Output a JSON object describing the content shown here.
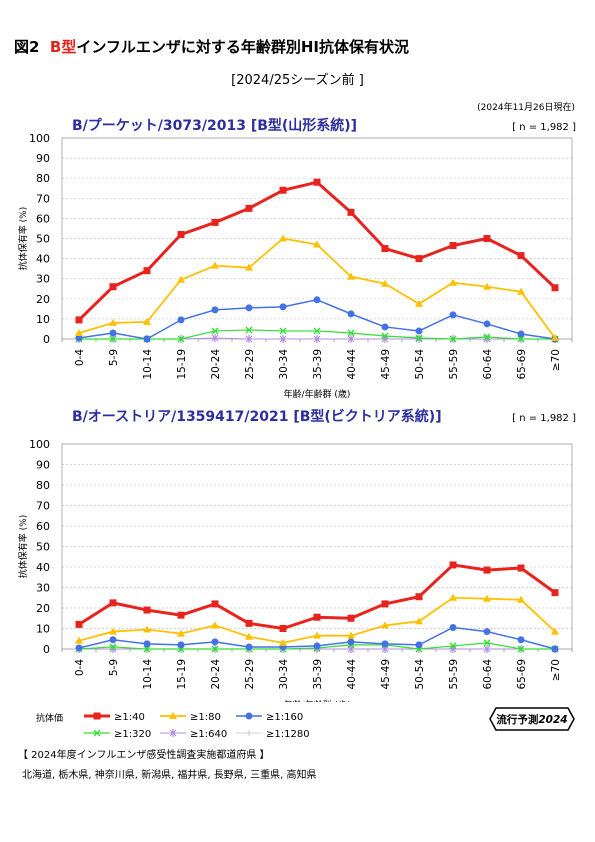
{
  "figure": {
    "title_prefix": "図2",
    "title_accent": "B型",
    "title_rest": "インフルエンザに対する年齢群別HI抗体保有状況",
    "subtitle": "[2024/25シーズン前 ]",
    "as_of": "(2024年11月26日現在)"
  },
  "colors": {
    "title_text": "#2e2e9e",
    "series": [
      "#e8231d",
      "#ffc000",
      "#4472e6",
      "#33dd33",
      "#b38be6",
      "#c8c8c8"
    ],
    "grid": "#c8c8c8"
  },
  "chart_data": [
    {
      "type": "line",
      "title": "B/プーケット/3073/2013 [B型(山形系統)]",
      "n_label": "[ n = 1,982 ]",
      "xlabel": "年齢/年齢群 (歳)",
      "ylabel": "抗体保有率 (%)",
      "ylim": [
        0,
        100
      ],
      "yticks": [
        0,
        10,
        20,
        30,
        40,
        50,
        60,
        70,
        80,
        90,
        100
      ],
      "grid": true,
      "categories": [
        "0-4",
        "5-9",
        "10-14",
        "15-19",
        "20-24",
        "25-29",
        "30-34",
        "35-39",
        "40-44",
        "45-49",
        "50-54",
        "55-59",
        "60-64",
        "65-69",
        "≥70"
      ],
      "series": [
        {
          "name": "≥1:40",
          "values": [
            9.5,
            26,
            34,
            52,
            58,
            65,
            74,
            78,
            63,
            45,
            40,
            46.5,
            50,
            41.5,
            25.5
          ]
        },
        {
          "name": "≥1:80",
          "values": [
            3,
            8,
            8.5,
            29.5,
            36.5,
            35.5,
            50,
            47,
            31,
            27.5,
            17.5,
            28,
            26,
            23.5,
            0.5
          ]
        },
        {
          "name": "≥1:160",
          "values": [
            0.5,
            3,
            0,
            9.5,
            14.5,
            15.5,
            16,
            19.5,
            12.5,
            6,
            4,
            12,
            7.5,
            2.5,
            0
          ]
        },
        {
          "name": "≥1:320",
          "values": [
            0,
            0,
            0,
            0,
            4,
            4.5,
            4,
            4,
            3,
            1.5,
            0.5,
            0,
            1,
            0,
            0
          ]
        },
        {
          "name": "≥1:640",
          "values": [
            0,
            0,
            0,
            0,
            0.5,
            0,
            0,
            0,
            0,
            0,
            0,
            0,
            0,
            0,
            0
          ]
        },
        {
          "name": "≥1:1280",
          "values": [
            0,
            0,
            0,
            0,
            0,
            0,
            0,
            0,
            0,
            0,
            0,
            0,
            0,
            0,
            0
          ]
        }
      ]
    },
    {
      "type": "line",
      "title": "B/オーストリア/1359417/2021  [B型(ビクトリア系統)]",
      "n_label": "[ n = 1,982 ]",
      "xlabel": "年齢/年齢群 (歳)",
      "ylabel": "抗体保有率 (%)",
      "ylim": [
        0,
        100
      ],
      "yticks": [
        0,
        10,
        20,
        30,
        40,
        50,
        60,
        70,
        80,
        90,
        100
      ],
      "grid": true,
      "categories": [
        "0-4",
        "5-9",
        "10-14",
        "15-19",
        "20-24",
        "25-29",
        "30-34",
        "35-39",
        "40-44",
        "45-49",
        "50-54",
        "55-59",
        "60-64",
        "65-69",
        "≥70"
      ],
      "series": [
        {
          "name": "≥1:40",
          "values": [
            12,
            22.5,
            19,
            16.5,
            22,
            12.5,
            10,
            15.5,
            15,
            22,
            25.5,
            41,
            38.5,
            39.5,
            27.5
          ]
        },
        {
          "name": "≥1:80",
          "values": [
            4,
            8.5,
            9.5,
            7.5,
            11.5,
            6,
            3,
            6.5,
            6.5,
            11.5,
            13.5,
            25,
            24.5,
            24,
            8.5
          ]
        },
        {
          "name": "≥1:160",
          "values": [
            0.5,
            4.5,
            2.5,
            2,
            3.5,
            1,
            1,
            1.5,
            3.5,
            2.5,
            2,
            10.5,
            8.5,
            4.5,
            0
          ]
        },
        {
          "name": "≥1:320",
          "values": [
            0,
            1,
            0,
            0,
            0,
            0,
            0,
            0.5,
            2,
            2,
            0,
            1.5,
            3,
            0,
            0
          ]
        },
        {
          "name": "≥1:640",
          "values": [
            0,
            0,
            0,
            0,
            0,
            0,
            0,
            0,
            0,
            0,
            0,
            0,
            0,
            0,
            0
          ]
        },
        {
          "name": "≥1:1280",
          "values": [
            0,
            0,
            0,
            0,
            0,
            0,
            0,
            0,
            0,
            0,
            0,
            0,
            0,
            0,
            0
          ]
        }
      ]
    }
  ],
  "legend": {
    "label": "抗体価",
    "items": [
      "≥1:40",
      "≥1:80",
      "≥1:160",
      "≥1:320",
      "≥1:640",
      "≥1:1280"
    ]
  },
  "badge": {
    "text": "流行予測",
    "year": "2024"
  },
  "survey": {
    "title": "【 2024年度インフルエンザ感受性調査実施都道府県 】",
    "prefectures": "北海道, 栃木県, 神奈川県, 新潟県, 福井県, 長野県, 三重県, 高知県"
  }
}
